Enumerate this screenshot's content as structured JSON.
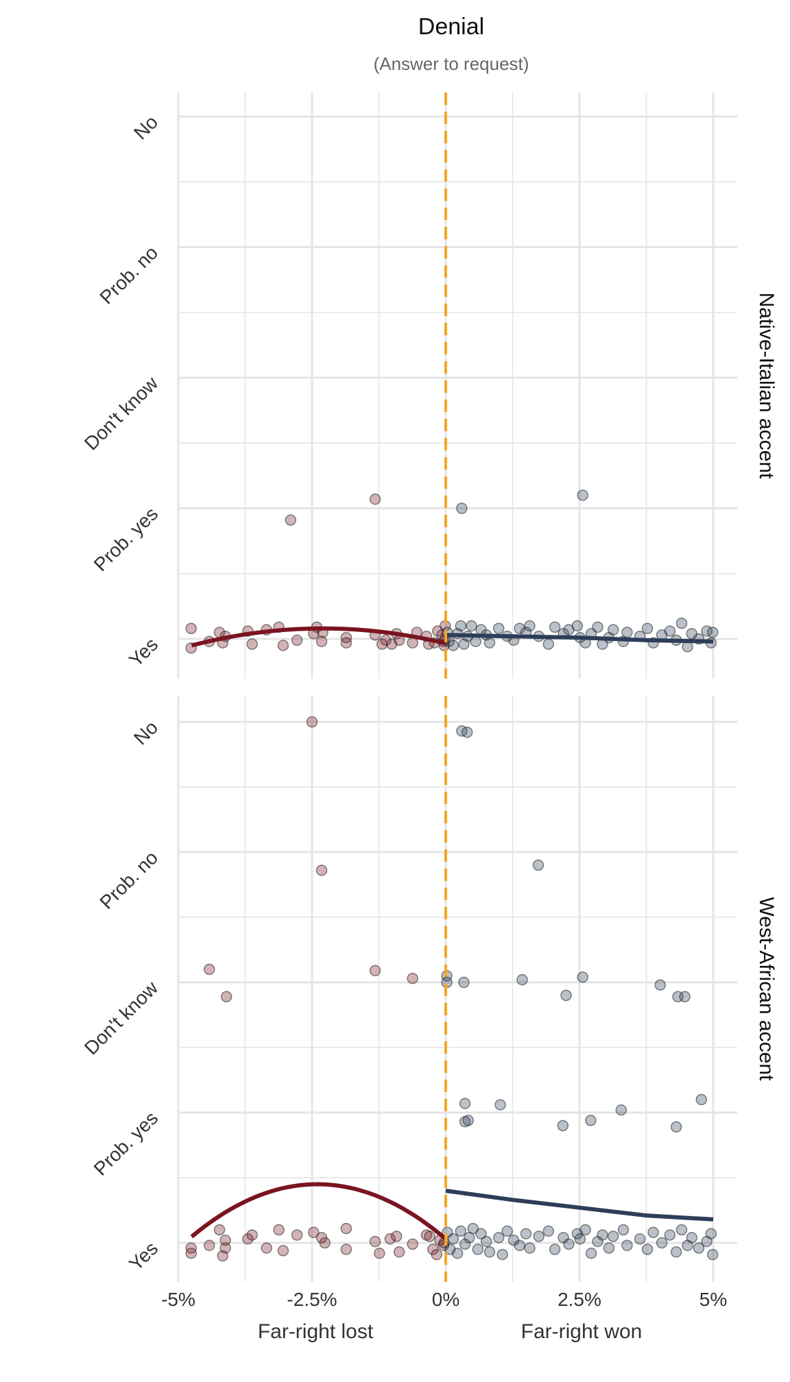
{
  "chart_data": {
    "type": "scatter",
    "title": "Denial",
    "subtitle": "(Answer to request)",
    "x_ticks": [
      "-5%",
      "-2.5%",
      "0%",
      "2.5%",
      "5%"
    ],
    "x_tick_values": [
      -5,
      -2.5,
      0,
      2.5,
      5
    ],
    "x_range": [
      -5.0,
      5.0
    ],
    "y_categories": [
      "Yes",
      "Prob. yes",
      "Don't know",
      "Prob. no",
      "No"
    ],
    "y_category_values": [
      1,
      2,
      3,
      4,
      5
    ],
    "x_side_labels": [
      "Far-right lost",
      "Far-right won"
    ],
    "cutoff": 0,
    "colors": {
      "lost": "#7a1420",
      "won": "#2d3e5a",
      "cutoff": "#f5a623",
      "grid": "#e4e4e4"
    },
    "facets": [
      {
        "label": "Native-Italian accent",
        "points_lost": [
          [
            -4.76,
            1.08
          ],
          [
            -4.76,
            0.93
          ],
          [
            -4.42,
            0.98
          ],
          [
            -4.23,
            1.05
          ],
          [
            -4.17,
            0.97
          ],
          [
            -4.12,
            1.02
          ],
          [
            -3.7,
            1.06
          ],
          [
            -3.62,
            0.96
          ],
          [
            -3.35,
            1.07
          ],
          [
            -3.12,
            1.09
          ],
          [
            -3.04,
            0.95
          ],
          [
            -2.78,
            0.99
          ],
          [
            -2.47,
            1.04
          ],
          [
            -2.41,
            1.09
          ],
          [
            -2.32,
            0.98
          ],
          [
            -2.3,
            1.05
          ],
          [
            -1.86,
            0.97
          ],
          [
            -1.86,
            1.01
          ],
          [
            -1.32,
            1.03
          ],
          [
            -1.19,
            0.96
          ],
          [
            -1.12,
            0.99
          ],
          [
            -1.01,
            0.96
          ],
          [
            -0.92,
            1.04
          ],
          [
            -0.87,
            0.99
          ],
          [
            -0.62,
            0.97
          ],
          [
            -0.54,
            1.05
          ],
          [
            -0.36,
            1.02
          ],
          [
            -0.32,
            0.96
          ],
          [
            -0.21,
            0.97
          ],
          [
            -0.15,
            1.06
          ],
          [
            -0.07,
            1.03
          ],
          [
            -0.04,
            0.98
          ],
          [
            -0.03,
            0.95
          ],
          [
            -0.01,
            1.1
          ],
          [
            -0.01,
            1.0
          ],
          [
            -2.9,
            1.91
          ],
          [
            -1.32,
            2.07
          ]
        ],
        "points_won": [
          [
            0.03,
            1.05
          ],
          [
            0.06,
            0.98
          ],
          [
            0.14,
            0.95
          ],
          [
            0.22,
            1.04
          ],
          [
            0.28,
            1.1
          ],
          [
            0.34,
            0.96
          ],
          [
            0.41,
            1.02
          ],
          [
            0.48,
            1.1
          ],
          [
            0.56,
            0.98
          ],
          [
            0.66,
            1.07
          ],
          [
            0.76,
            1.03
          ],
          [
            0.82,
            0.97
          ],
          [
            0.99,
            1.08
          ],
          [
            1.15,
            1.02
          ],
          [
            1.27,
            0.99
          ],
          [
            1.38,
            1.08
          ],
          [
            1.5,
            1.05
          ],
          [
            1.57,
            1.1
          ],
          [
            1.74,
            1.02
          ],
          [
            1.92,
            0.96
          ],
          [
            2.04,
            1.09
          ],
          [
            2.2,
            1.04
          ],
          [
            2.3,
            1.07
          ],
          [
            2.46,
            1.1
          ],
          [
            2.51,
            1.01
          ],
          [
            2.61,
            0.97
          ],
          [
            2.72,
            1.04
          ],
          [
            2.84,
            1.09
          ],
          [
            2.93,
            0.96
          ],
          [
            3.05,
            1.01
          ],
          [
            3.13,
            1.07
          ],
          [
            3.32,
            0.98
          ],
          [
            3.39,
            1.05
          ],
          [
            3.63,
            1.02
          ],
          [
            3.77,
            1.08
          ],
          [
            3.88,
            0.97
          ],
          [
            4.04,
            1.03
          ],
          [
            4.19,
            1.06
          ],
          [
            4.31,
            0.99
          ],
          [
            4.41,
            1.12
          ],
          [
            4.52,
            0.94
          ],
          [
            4.6,
            1.04
          ],
          [
            4.73,
            1.0
          ],
          [
            4.88,
            1.06
          ],
          [
            4.96,
            0.97
          ],
          [
            4.99,
            1.05
          ],
          [
            0.3,
            2.0
          ],
          [
            2.56,
            2.1
          ]
        ],
        "fit_lost": {
          "a": 1.08,
          "h": -2.3,
          "k": 1.0,
          "x_start": -4.75,
          "x_end": 0.0
        },
        "fit_won": {
          "x": [
            0.0,
            1.25,
            2.5,
            3.75,
            5.0
          ],
          "y": [
            1.03,
            1.02,
            1.01,
            0.99,
            0.98
          ]
        }
      },
      {
        "label": "West-African accent",
        "points_lost": [
          [
            -4.76,
            0.92
          ],
          [
            -4.76,
            0.96
          ],
          [
            -4.42,
            0.98
          ],
          [
            -4.23,
            1.1
          ],
          [
            -4.17,
            0.9
          ],
          [
            -4.12,
            0.96
          ],
          [
            -4.12,
            1.02
          ],
          [
            -3.7,
            1.03
          ],
          [
            -3.62,
            1.06
          ],
          [
            -3.35,
            0.96
          ],
          [
            -3.12,
            1.1
          ],
          [
            -3.04,
            0.94
          ],
          [
            -2.78,
            1.06
          ],
          [
            -2.47,
            1.08
          ],
          [
            -2.32,
            1.04
          ],
          [
            -2.26,
            1.0
          ],
          [
            -1.86,
            1.11
          ],
          [
            -1.86,
            0.95
          ],
          [
            -1.32,
            1.01
          ],
          [
            -1.24,
            0.92
          ],
          [
            -1.04,
            1.03
          ],
          [
            -0.92,
            1.05
          ],
          [
            -0.87,
            0.93
          ],
          [
            -0.62,
            0.99
          ],
          [
            -0.36,
            1.06
          ],
          [
            -0.3,
            1.05
          ],
          [
            -0.24,
            0.95
          ],
          [
            -0.17,
            0.91
          ],
          [
            -0.11,
            1.02
          ],
          [
            -0.04,
            0.98
          ],
          [
            -0.03,
            1.0
          ],
          [
            -2.5,
            5.0
          ],
          [
            -2.32,
            3.86
          ],
          [
            -4.42,
            3.1
          ],
          [
            -4.1,
            2.89
          ],
          [
            -1.32,
            3.09
          ],
          [
            -0.62,
            3.03
          ]
        ],
        "points_won": [
          [
            0.03,
            1.08
          ],
          [
            0.08,
            0.95
          ],
          [
            0.14,
            1.03
          ],
          [
            0.22,
            0.92
          ],
          [
            0.28,
            1.09
          ],
          [
            0.36,
            0.99
          ],
          [
            0.44,
            1.04
          ],
          [
            0.51,
            1.11
          ],
          [
            0.6,
            0.95
          ],
          [
            0.66,
            1.07
          ],
          [
            0.76,
            1.01
          ],
          [
            0.82,
            0.93
          ],
          [
            0.99,
            1.04
          ],
          [
            1.06,
            0.91
          ],
          [
            1.15,
            1.09
          ],
          [
            1.27,
            1.02
          ],
          [
            1.38,
            0.98
          ],
          [
            1.5,
            1.07
          ],
          [
            1.57,
            0.96
          ],
          [
            1.74,
            1.05
          ],
          [
            1.92,
            1.09
          ],
          [
            2.04,
            0.95
          ],
          [
            2.2,
            1.04
          ],
          [
            2.3,
            0.99
          ],
          [
            2.46,
            1.07
          ],
          [
            2.51,
            1.03
          ],
          [
            2.61,
            1.1
          ],
          [
            2.72,
            0.92
          ],
          [
            2.84,
            1.01
          ],
          [
            2.93,
            1.06
          ],
          [
            3.05,
            0.96
          ],
          [
            3.13,
            1.05
          ],
          [
            3.32,
            1.1
          ],
          [
            3.39,
            0.98
          ],
          [
            3.63,
            1.03
          ],
          [
            3.77,
            0.95
          ],
          [
            3.88,
            1.08
          ],
          [
            4.04,
            1.0
          ],
          [
            4.19,
            1.06
          ],
          [
            4.31,
            0.93
          ],
          [
            4.41,
            1.1
          ],
          [
            4.52,
            0.98
          ],
          [
            4.6,
            1.04
          ],
          [
            4.73,
            0.96
          ],
          [
            4.88,
            1.01
          ],
          [
            4.96,
            1.07
          ],
          [
            4.99,
            0.91
          ],
          [
            0.3,
            4.93
          ],
          [
            0.4,
            4.92
          ],
          [
            1.73,
            3.9
          ],
          [
            0.02,
            3.05
          ],
          [
            0.02,
            3.0
          ],
          [
            0.34,
            3.0
          ],
          [
            1.43,
            3.02
          ],
          [
            2.25,
            2.9
          ],
          [
            2.56,
            3.04
          ],
          [
            4.01,
            2.98
          ],
          [
            4.34,
            2.89
          ],
          [
            4.47,
            2.89
          ],
          [
            0.36,
            2.07
          ],
          [
            1.02,
            2.06
          ],
          [
            0.36,
            1.93
          ],
          [
            0.42,
            1.94
          ],
          [
            2.19,
            1.9
          ],
          [
            2.71,
            1.94
          ],
          [
            3.28,
            2.02
          ],
          [
            4.31,
            1.89
          ],
          [
            4.78,
            2.1
          ]
        ],
        "fit_lost": {
          "a": 1.52,
          "h": -2.4,
          "k": 1.45,
          "x_start": -4.75,
          "x_end": 0.0
        },
        "fit_won": {
          "x": [
            0.0,
            1.25,
            2.5,
            3.75,
            5.0
          ],
          "y": [
            1.4,
            1.33,
            1.27,
            1.21,
            1.18
          ]
        }
      }
    ]
  }
}
